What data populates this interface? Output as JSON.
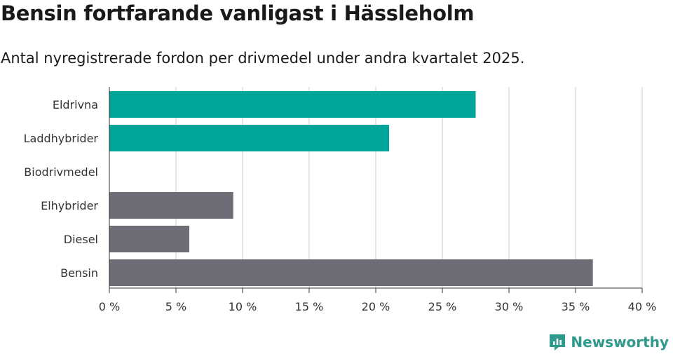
{
  "title": "Bensin fortfarande vanligast i Hässleholm",
  "subtitle": "Antal nyregistrerade fordon per drivmedel under andra kvartalet 2025.",
  "brand": "Newsworthy",
  "colors": {
    "electric": "#00a499",
    "other": "#6e6d75",
    "grid": "#dddddd",
    "brand": "#2e9a8c"
  },
  "chart_data": {
    "type": "bar",
    "orientation": "horizontal",
    "categories": [
      "Eldrivna",
      "Laddhybrider",
      "Biodrivmedel",
      "Elhybrider",
      "Diesel",
      "Bensin"
    ],
    "values": [
      27.5,
      21.0,
      0,
      9.3,
      6.0,
      36.3
    ],
    "bar_colors": [
      "#00a499",
      "#00a499",
      "#6e6d75",
      "#6e6d75",
      "#6e6d75",
      "#6e6d75"
    ],
    "xlim": [
      0,
      40
    ],
    "xticks": [
      0,
      5,
      10,
      15,
      20,
      25,
      30,
      35,
      40
    ],
    "xtick_labels": [
      "0 %",
      "5 %",
      "10 %",
      "15 %",
      "20 %",
      "25 %",
      "30 %",
      "35 %",
      "40 %"
    ],
    "xlabel": "",
    "ylabel": "",
    "grid": "vertical",
    "legend": "none"
  }
}
